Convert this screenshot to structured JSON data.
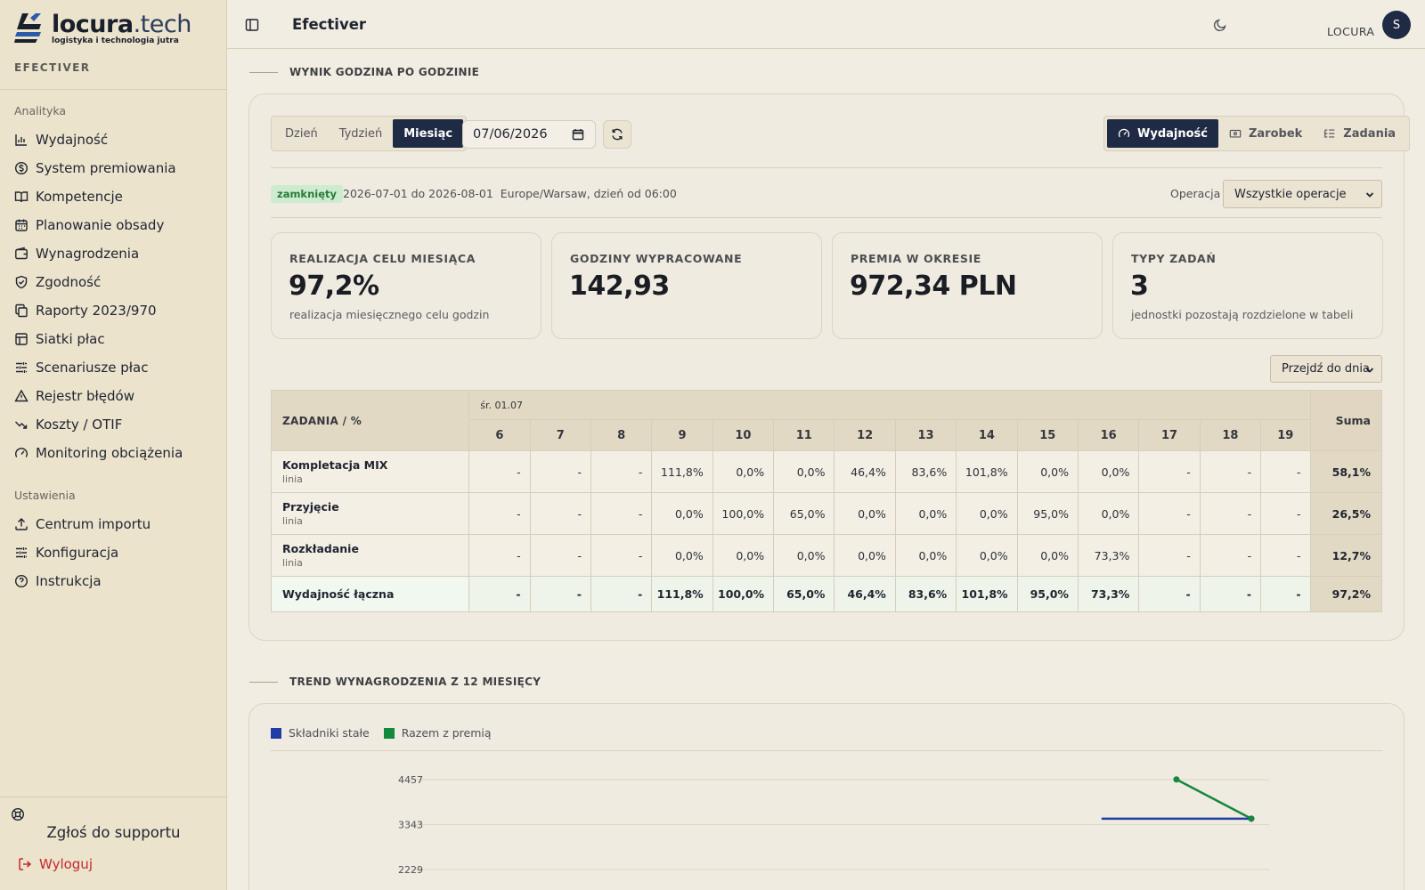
{
  "app": {
    "logo_main": "locura",
    "logo_tld": ".tech",
    "logo_sub": "logistyka i technologia jutra",
    "app_label": "EFECTIVER"
  },
  "sidebar": {
    "section_analytics": "Analityka",
    "analytics_items": [
      {
        "label": "Wydajność",
        "icon": "bar-chart-icon"
      },
      {
        "label": "System premiowania",
        "icon": "coin-icon"
      },
      {
        "label": "Kompetencje",
        "icon": "book-icon"
      },
      {
        "label": "Planowanie obsady",
        "icon": "calendar-icon"
      },
      {
        "label": "Wynagrodzenia",
        "icon": "wallet-icon"
      },
      {
        "label": "Zgodność",
        "icon": "shield-check-icon"
      },
      {
        "label": "Raporty 2023/970",
        "icon": "copy-icon"
      },
      {
        "label": "Siatki płac",
        "icon": "table-icon"
      },
      {
        "label": "Scenariusze płac",
        "icon": "sliders-icon"
      },
      {
        "label": "Rejestr błędów",
        "icon": "warning-icon"
      },
      {
        "label": "Koszty / OTIF",
        "icon": "trend-down-icon"
      },
      {
        "label": "Monitoring obciążenia",
        "icon": "gauge-icon"
      }
    ],
    "section_settings": "Ustawienia",
    "settings_items": [
      {
        "label": "Centrum importu",
        "icon": "upload-icon"
      },
      {
        "label": "Konfiguracja",
        "icon": "sliders-icon"
      },
      {
        "label": "Instrukcja",
        "icon": "help-circle-icon"
      }
    ],
    "support_label": "Zgłoś do supportu",
    "logout_label": "Wyloguj"
  },
  "header": {
    "title": "Efectiver",
    "user_name": "LOCURA",
    "avatar_initial": "S"
  },
  "section1": {
    "heading": "WYNIK GODZINA PO GODZINIE",
    "period_tabs": [
      "Dzień",
      "Tydzień",
      "Miesiąc"
    ],
    "active_period": "Miesiąc",
    "date_value": "07/06/2026",
    "view_tabs": [
      {
        "label": "Wydajność",
        "icon": "gauge-icon"
      },
      {
        "label": "Zarobek",
        "icon": "banknote-icon"
      },
      {
        "label": "Zadania",
        "icon": "list-icon"
      }
    ],
    "active_view": "Wydajność",
    "status_badge": "zamknięty",
    "range_text": "2026-07-01 do 2026-08-01",
    "tz_text": "Europe/Warsaw, dzień od 06:00",
    "operation_label": "Operacja",
    "operation_value": "Wszystkie operacje",
    "kpis": [
      {
        "label": "REALIZACJA CELU MIESIĄCA",
        "value": "97,2%",
        "sub": "realizacja miesięcznego celu godzin"
      },
      {
        "label": "GODZINY WYPRACOWANE",
        "value": "142,93",
        "sub": ""
      },
      {
        "label": "PREMIA W OKRESIE",
        "value": "972,34 PLN",
        "sub": ""
      },
      {
        "label": "TYPY ZADAŃ",
        "value": "3",
        "sub": "jednostki pozostają rozdzielone w tabeli"
      }
    ],
    "jump_label": "Przejdź do dnia",
    "table": {
      "task_header": "ZADANIA / %",
      "day_label": "śr. 01.07",
      "hours": [
        "6",
        "7",
        "8",
        "9",
        "10",
        "11",
        "12",
        "13",
        "14",
        "15",
        "16",
        "17",
        "18",
        "19"
      ],
      "sum_header": "Suma",
      "rows": [
        {
          "name": "Kompletacja MIX",
          "sub": "linia",
          "cells": [
            "-",
            "-",
            "-",
            "111,8%",
            "0,0%",
            "0,0%",
            "46,4%",
            "83,6%",
            "101,8%",
            "0,0%",
            "0,0%",
            "-",
            "-",
            "-"
          ],
          "sum": "58,1%"
        },
        {
          "name": "Przyjęcie",
          "sub": "linia",
          "cells": [
            "-",
            "-",
            "-",
            "0,0%",
            "100,0%",
            "65,0%",
            "0,0%",
            "0,0%",
            "0,0%",
            "95,0%",
            "0,0%",
            "-",
            "-",
            "-"
          ],
          "sum": "26,5%"
        },
        {
          "name": "Rozkładanie",
          "sub": "linia",
          "cells": [
            "-",
            "-",
            "-",
            "0,0%",
            "0,0%",
            "0,0%",
            "0,0%",
            "0,0%",
            "0,0%",
            "0,0%",
            "73,3%",
            "-",
            "-",
            "-"
          ],
          "sum": "12,7%"
        }
      ],
      "total": {
        "name": "Wydajność łączna",
        "cells": [
          "-",
          "-",
          "-",
          "111,8%",
          "100,0%",
          "65,0%",
          "46,4%",
          "83,6%",
          "101,8%",
          "95,0%",
          "73,3%",
          "-",
          "-",
          "-"
        ],
        "sum": "97,2%"
      }
    }
  },
  "section2": {
    "heading": "TREND WYNAGRODZENIA Z 12 MIESIĘCY"
  },
  "chart_data": {
    "type": "line",
    "title": "",
    "ylim": [
      2229,
      4457
    ],
    "y_ticks": [
      4457,
      3343,
      2229
    ],
    "grid": true,
    "legend_position": "top-left",
    "x_count": 12,
    "series": [
      {
        "name": "Składniki stałe",
        "color": "#1f3fa6",
        "points": [
          {
            "x": 9,
            "y": 3490
          },
          {
            "x": 10,
            "y": 3490
          },
          {
            "x": 11,
            "y": 3490
          }
        ]
      },
      {
        "name": "Razem z premią",
        "color": "#14883c",
        "points": [
          {
            "x": 10,
            "y": 4462
          },
          {
            "x": 11,
            "y": 3490
          }
        ]
      }
    ]
  },
  "colors": {
    "primary": "#1f2a44",
    "logout": "#c6262e",
    "badge_bg": "#cdeccf",
    "badge_fg": "#2b7a39"
  }
}
